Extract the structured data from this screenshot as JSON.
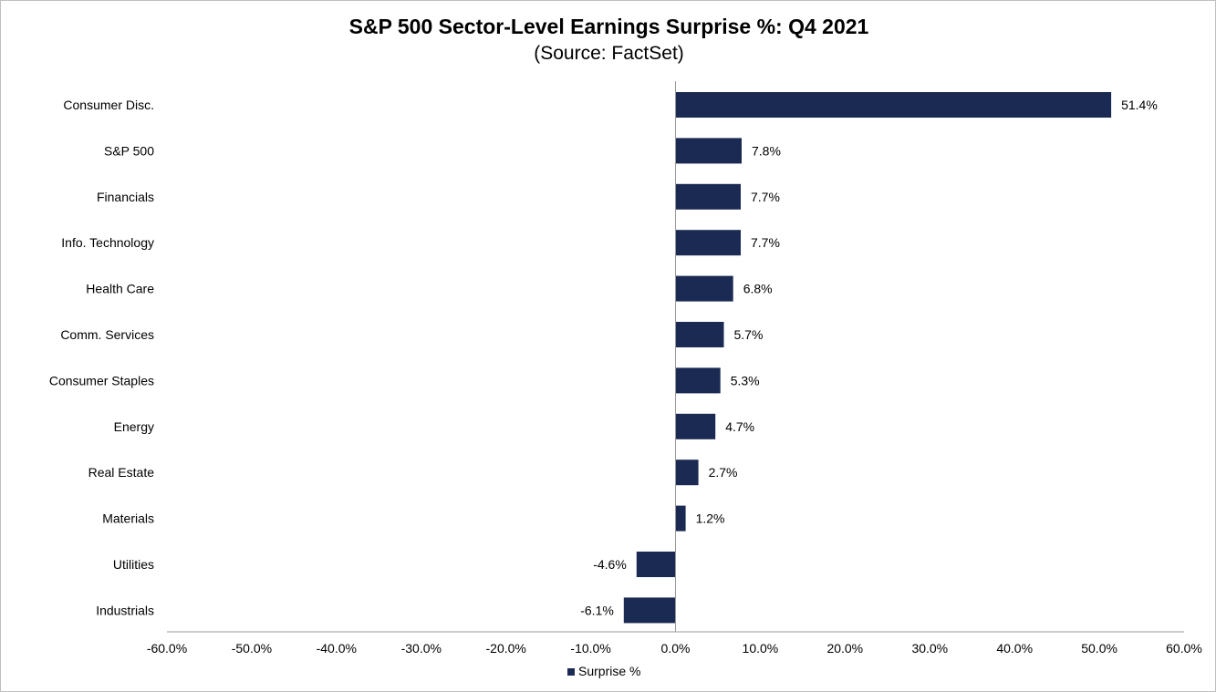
{
  "chart_data": {
    "type": "bar",
    "orientation": "horizontal",
    "title": "S&P 500 Sector-Level Earnings Surprise %: Q4 2021",
    "subtitle": "(Source: FactSet)",
    "categories": [
      "Consumer Disc.",
      "S&P 500",
      "Financials",
      "Info. Technology",
      "Health Care",
      "Comm. Services",
      "Consumer Staples",
      "Energy",
      "Real Estate",
      "Materials",
      "Utilities",
      "Industrials"
    ],
    "series": [
      {
        "name": "Surprise %",
        "values": [
          51.4,
          7.8,
          7.7,
          7.7,
          6.8,
          5.7,
          5.3,
          4.7,
          2.7,
          1.2,
          -4.6,
          -6.1
        ],
        "data_labels": [
          "51.4%",
          "7.8%",
          "7.7%",
          "7.7%",
          "6.8%",
          "5.7%",
          "5.3%",
          "4.7%",
          "2.7%",
          "1.2%",
          "-4.6%",
          "-6.1%"
        ]
      }
    ],
    "xlim": [
      -60,
      60
    ],
    "x_ticks": [
      -60,
      -50,
      -40,
      -30,
      -20,
      -10,
      0,
      10,
      20,
      30,
      40,
      50,
      60
    ],
    "x_tick_labels": [
      "-60.0%",
      "-50.0%",
      "-40.0%",
      "-30.0%",
      "-20.0%",
      "-10.0%",
      "0.0%",
      "10.0%",
      "20.0%",
      "30.0%",
      "40.0%",
      "50.0%",
      "60.0%"
    ],
    "xlabel": "",
    "ylabel": "",
    "grid": false,
    "legend": {
      "position": "bottom",
      "entries": [
        "Surprise %"
      ]
    },
    "colors": {
      "bar": "#1b2a52",
      "axis": "#999999"
    }
  }
}
